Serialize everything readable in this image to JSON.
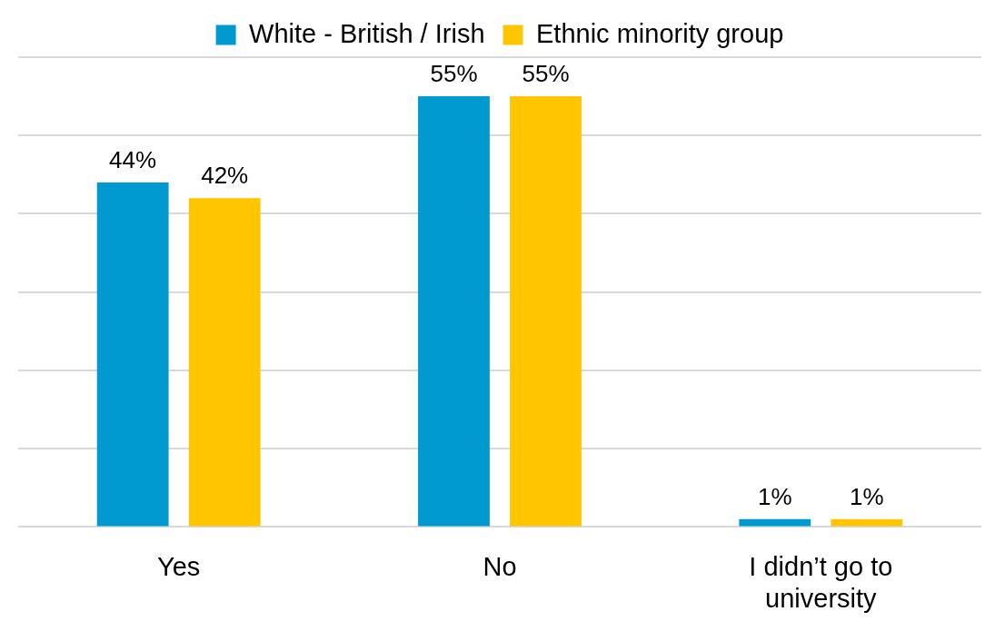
{
  "chart_data": {
    "type": "bar",
    "categories": [
      "Yes",
      "No",
      "I didn’t go to university"
    ],
    "series": [
      {
        "name": "White - British / Irish",
        "color": "#0099d0",
        "values": [
          44,
          55,
          1
        ],
        "value_labels": [
          "44%",
          "55%",
          "1%"
        ]
      },
      {
        "name": "Ethnic minority group",
        "color": "#ffc600",
        "values": [
          42,
          55,
          1
        ],
        "value_labels": [
          "42%",
          "55%",
          "1%"
        ]
      }
    ],
    "ylim": [
      0,
      60
    ],
    "yticks": [
      {
        "value": 0,
        "label": null
      },
      {
        "value": 10,
        "label": null
      },
      {
        "value": 20,
        "label": null
      },
      {
        "value": 30,
        "label": null
      },
      {
        "value": 40,
        "label": null
      },
      {
        "value": 50,
        "label": null
      },
      {
        "value": 60,
        "label": null
      }
    ],
    "tick_labels": "x",
    "grid": "y",
    "legend": "top"
  }
}
